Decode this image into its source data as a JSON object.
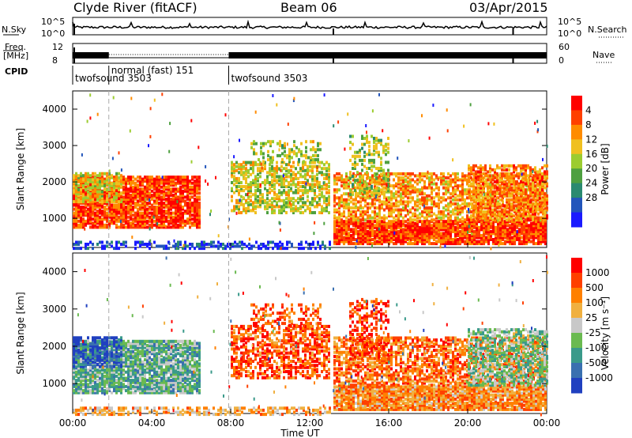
{
  "header": {
    "station": "Clyde River (fitACF)",
    "beam": "Beam 06",
    "date": "03/Apr/2015"
  },
  "side_labels": {
    "nsky": "N.Sky",
    "freq_line1": "Freq.",
    "freq_line2": "[MHz]",
    "cpid": "CPID",
    "nsearch": "N.Search",
    "nave": "Nave",
    "nsky_top": "10^5",
    "nsky_bottom": "10^0",
    "freq_top": "12",
    "freq_bottom": "8",
    "nave_top": "60",
    "nave_bottom": "0"
  },
  "chart_data": [
    {
      "type": "heatmap",
      "name": "power",
      "ylabel": "Slant Range [km]",
      "ylim": [
        200,
        4500
      ],
      "yticks": [
        "1000",
        "2000",
        "3000",
        "4000"
      ],
      "colorbar_label": "Power [dB]",
      "colorbar_ticks": [
        "4",
        "8",
        "12",
        "16",
        "20",
        "24",
        "28"
      ],
      "colors": [
        "#1a1aff",
        "#2255bb",
        "#2a8a70",
        "#4ea040",
        "#9ccc30",
        "#f0c020",
        "#ff8c00",
        "#ff4000",
        "#ff0000"
      ]
    },
    {
      "type": "heatmap",
      "name": "velocity",
      "xlabel": "Time UT",
      "ylabel": "Slant Range [km]",
      "ylim": [
        200,
        4500
      ],
      "yticks": [
        "1000",
        "2000",
        "3000",
        "4000"
      ],
      "xticks": [
        "00:00",
        "04:00",
        "08:00",
        "12:00",
        "16:00",
        "20:00",
        "00:00"
      ],
      "colorbar_label": "Velocity  [m s⁻¹]",
      "colorbar_ticks": [
        "1000",
        "500",
        "100",
        "25",
        "-25",
        "-100",
        "-500",
        "-1000"
      ],
      "colors": [
        "#2040c0",
        "#3a70b0",
        "#3a9a8a",
        "#6aba50",
        "#c8c8c8",
        "#f0b040",
        "#ff8000",
        "#ff4000",
        "#ff0000"
      ]
    }
  ],
  "cpid_segments": [
    {
      "label": "twofsound  3503",
      "start_h": 0.0
    },
    {
      "label": "normal (fast)  151",
      "start_h": 1.83
    },
    {
      "label": "twofsound  3503",
      "start_h": 7.9
    }
  ]
}
